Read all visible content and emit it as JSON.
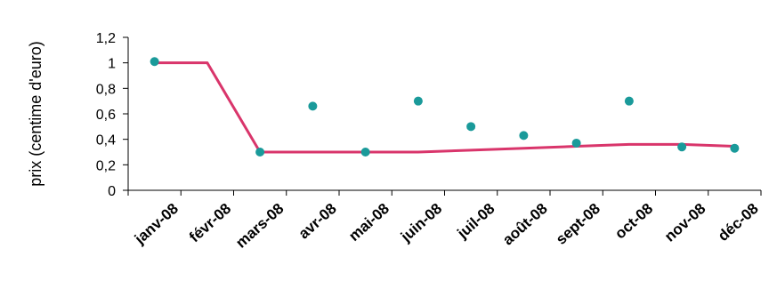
{
  "chart_data": {
    "type": "line",
    "title": "",
    "xlabel": "",
    "ylabel": "prix (centime d'euro)",
    "categories": [
      "janv-08",
      "févr-08",
      "mars-08",
      "avr-08",
      "mai-08",
      "juin-08",
      "juil-08",
      "août-08",
      "sept-08",
      "oct-08",
      "nov-08",
      "déc-08"
    ],
    "y_ticks": [
      "0",
      "0,2",
      "0,4",
      "0,6",
      "0,8",
      "1",
      "1,2"
    ],
    "ylim": [
      0,
      1.2
    ],
    "grid": false,
    "legend": "none",
    "series": [
      {
        "kind": "line",
        "color": "#d9356b",
        "values": [
          1.0,
          1.0,
          0.3,
          0.3,
          0.3,
          0.3,
          0.315,
          0.33,
          0.345,
          0.36,
          0.36,
          0.345
        ]
      },
      {
        "kind": "scatter",
        "color": "#1a9a9a",
        "values": [
          1.01,
          null,
          0.3,
          0.66,
          0.3,
          0.7,
          0.5,
          0.43,
          0.37,
          0.7,
          0.34,
          0.33
        ]
      }
    ]
  }
}
